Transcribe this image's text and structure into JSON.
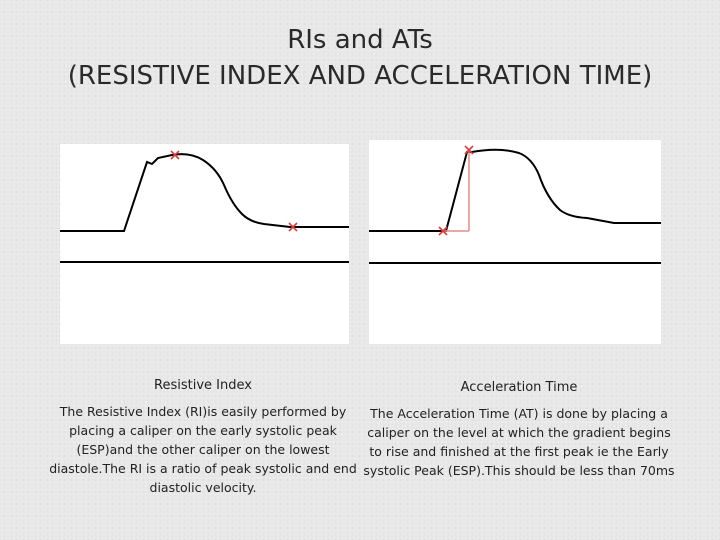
{
  "title": {
    "line1": "RIs and ATs",
    "line2": "(RESISTIVE INDEX AND ACCELERATION TIME)"
  },
  "resistive_index": {
    "heading": "Resistive Index",
    "description": "The Resistive Index (RI)is easily performed by placing a caliper on the early systolic peak (ESP)and the other caliper on the lowest diastole.The RI is a ratio of peak systolic and end diastolic velocity."
  },
  "acceleration_time": {
    "heading": "Acceleration Time",
    "description": "The Acceleration Time (AT) is done by placing a caliper on the level at which the gradient begins to rise and finished at the first peak ie the Early systolic Peak (ESP).This should be less than 70ms"
  },
  "colors": {
    "background": "#e7e7e7",
    "waveform": "#000000",
    "caliper": "#e03a3a",
    "at_marker": "#e98a8a"
  }
}
